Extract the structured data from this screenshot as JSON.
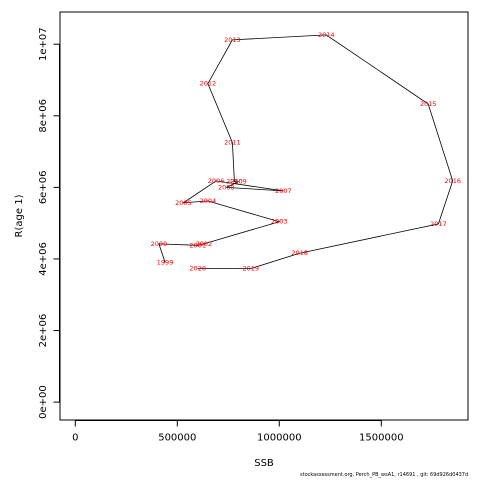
{
  "chart_data": {
    "type": "line",
    "title": "",
    "xlabel": "SSB",
    "ylabel": "R(age 1)",
    "xlim": [
      -75000,
      1925000
    ],
    "ylim": [
      -500000,
      10900000
    ],
    "xticks": [
      0,
      500000,
      1000000,
      1500000
    ],
    "xtick_labels": [
      "0",
      "500000",
      "1000000",
      "1500000"
    ],
    "yticks": [
      0,
      2000000,
      4000000,
      6000000,
      8000000,
      10000000
    ],
    "ytick_labels": [
      "0e+00",
      "2e+06",
      "4e+06",
      "6e+06",
      "8e+06",
      "1e+07"
    ],
    "grid": false,
    "line_color": "#000000",
    "label_color": "#ff0000",
    "points": [
      {
        "label": "1999",
        "x": 440000,
        "y": 3900000
      },
      {
        "label": "2000",
        "x": 410000,
        "y": 4420000
      },
      {
        "label": "2001",
        "x": 600000,
        "y": 4380000
      },
      {
        "label": "2002",
        "x": 630000,
        "y": 4420000
      },
      {
        "label": "2003",
        "x": 1000000,
        "y": 5040000
      },
      {
        "label": "2004",
        "x": 650000,
        "y": 5620000
      },
      {
        "label": "2005",
        "x": 530000,
        "y": 5570000
      },
      {
        "label": "2006",
        "x": 690000,
        "y": 6180000
      },
      {
        "label": "2007",
        "x": 1020000,
        "y": 5900000
      },
      {
        "label": "2008",
        "x": 740000,
        "y": 6000000
      },
      {
        "label": "2009",
        "x": 800000,
        "y": 6160000
      },
      {
        "label": "2010",
        "x": 780000,
        "y": 6160000
      },
      {
        "label": "2011",
        "x": 770000,
        "y": 7250000
      },
      {
        "label": "2012",
        "x": 650000,
        "y": 8900000
      },
      {
        "label": "2013",
        "x": 770000,
        "y": 10120000
      },
      {
        "label": "2014",
        "x": 1230000,
        "y": 10260000
      },
      {
        "label": "2015",
        "x": 1730000,
        "y": 8330000
      },
      {
        "label": "2016",
        "x": 1850000,
        "y": 6180000
      },
      {
        "label": "2017",
        "x": 1780000,
        "y": 4980000
      },
      {
        "label": "2018",
        "x": 1100000,
        "y": 4160000
      },
      {
        "label": "2019",
        "x": 860000,
        "y": 3730000
      },
      {
        "label": "2020",
        "x": 600000,
        "y": 3730000
      }
    ]
  },
  "footer_text": "stockassessment.org, Perch_PB_wsA1, r14691 , git: 69d926d0437d"
}
